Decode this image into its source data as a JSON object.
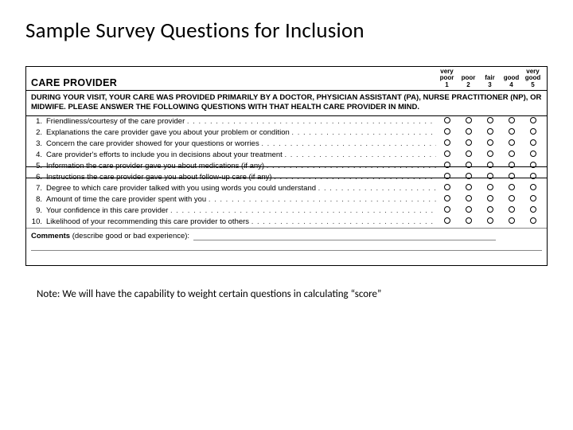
{
  "title": "Sample Survey Questions for Inclusion",
  "section_header": "CARE PROVIDER",
  "scale": [
    {
      "top": "very",
      "mid": "poor",
      "num": "1"
    },
    {
      "top": "",
      "mid": "poor",
      "num": "2"
    },
    {
      "top": "",
      "mid": "fair",
      "num": "3"
    },
    {
      "top": "",
      "mid": "good",
      "num": "4"
    },
    {
      "top": "very",
      "mid": "good",
      "num": "5"
    }
  ],
  "instructions": "DURING YOUR VISIT, YOUR CARE WAS PROVIDED PRIMARILY BY A DOCTOR, PHYSICIAN ASSISTANT (PA), NURSE PRACTITIONER (NP), OR MIDWIFE. PLEASE ANSWER THE FOLLOWING QUESTIONS WITH THAT HEALTH CARE PROVIDER IN MIND.",
  "questions": [
    {
      "n": "1.",
      "text": "Friendliness/courtesy of the care provider",
      "struck": false
    },
    {
      "n": "2.",
      "text": "Explanations the care provider gave you about your problem or condition",
      "struck": false
    },
    {
      "n": "3.",
      "text": "Concern the care provider showed for your questions or worries",
      "struck": false
    },
    {
      "n": "4.",
      "text": "Care provider's efforts to include you in decisions about your treatment",
      "struck": false
    },
    {
      "n": "5.",
      "text": "Information the care provider gave you about medications (if any)",
      "struck": true
    },
    {
      "n": "6.",
      "text": "Instructions the care provider gave you about follow-up care (if any)",
      "struck": true
    },
    {
      "n": "7.",
      "text": "Degree to which care provider talked with you using words you could understand",
      "struck": false
    },
    {
      "n": "8.",
      "text": "Amount of time the care provider spent with you",
      "struck": false
    },
    {
      "n": "9.",
      "text": "Your confidence in this care provider",
      "struck": false
    },
    {
      "n": "10.",
      "text": "Likelihood of your recommending this care provider to others",
      "struck": false
    }
  ],
  "comments_label": "Comments",
  "comments_hint": "(describe good or bad experience):",
  "footnote": "Note:  We will have the capability to weight certain questions in calculating “score”",
  "colors": {
    "text": "#000000",
    "background": "#ffffff",
    "rule": "#888888"
  }
}
